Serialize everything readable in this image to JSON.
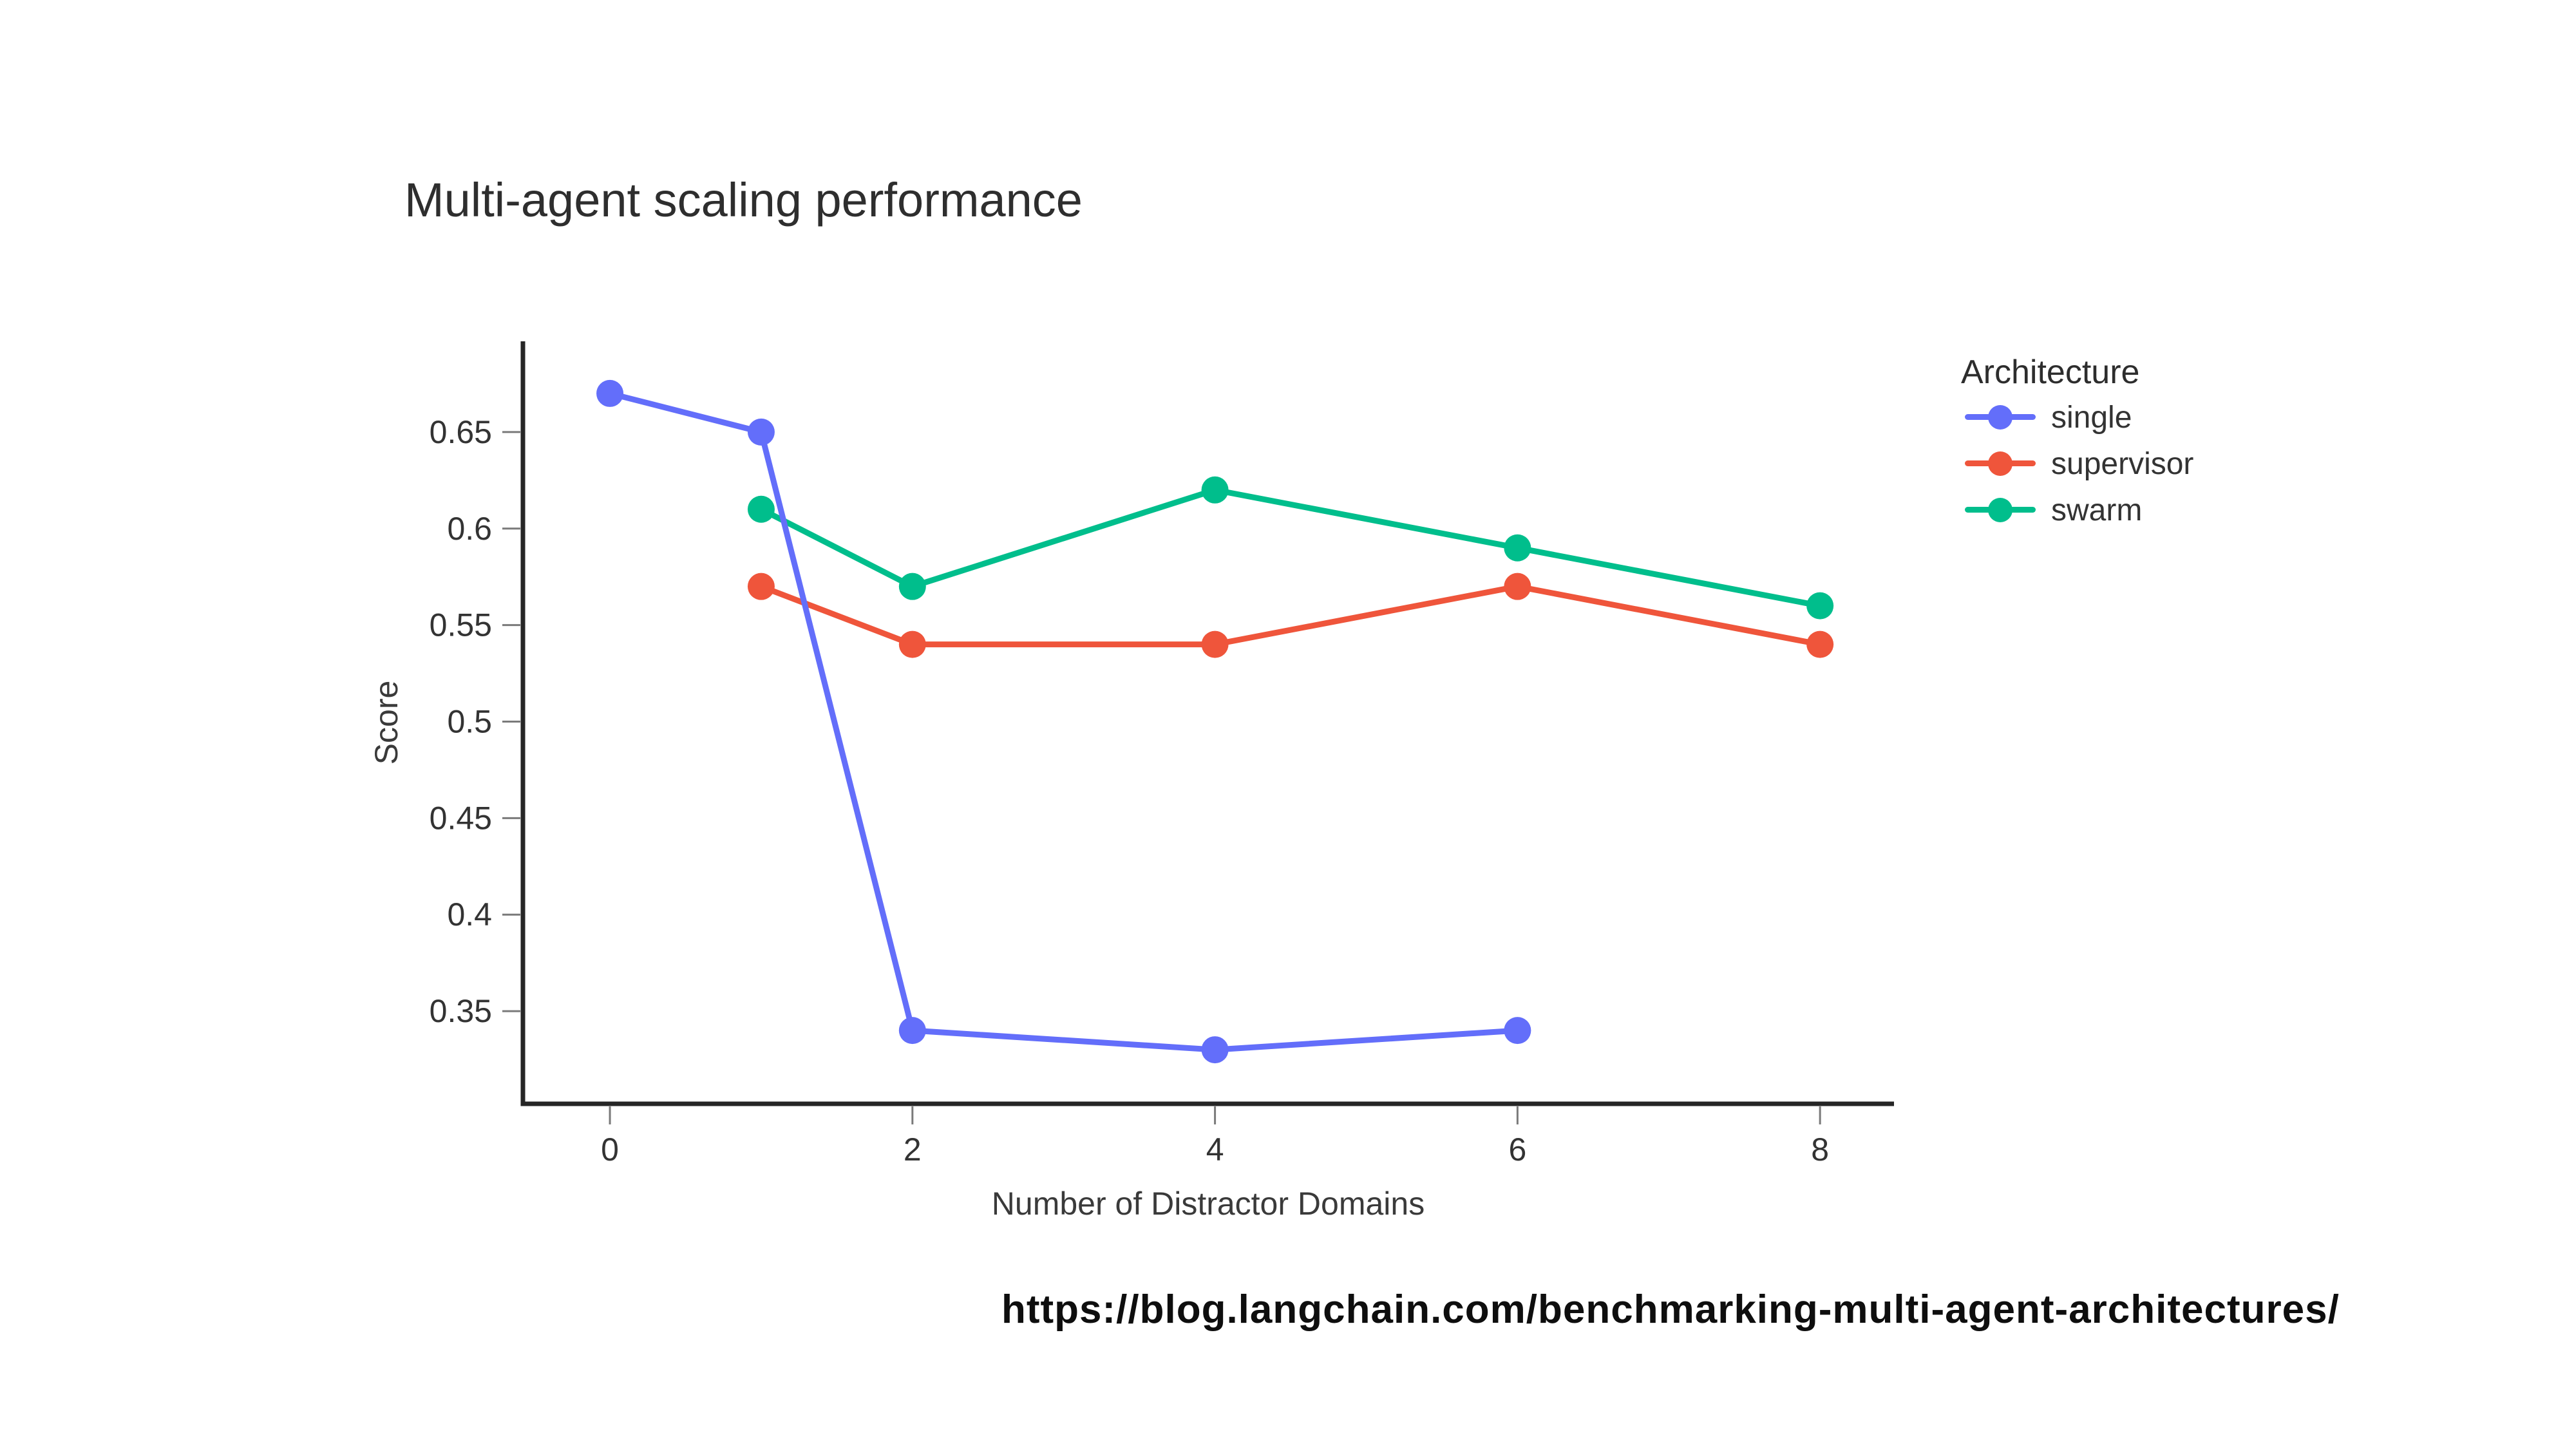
{
  "source": {
    "url": "https://blog.langchain.com/benchmarking-multi-agent-architectures/"
  },
  "chart_data": {
    "type": "line",
    "title": "Multi-agent scaling performance",
    "xlabel": "Number of Distractor Domains",
    "ylabel": "Score",
    "legend_title": "Architecture",
    "legend_position": "right-top",
    "grid": false,
    "background": "#ffffff",
    "x_ticks": [
      0,
      2,
      4,
      6,
      8
    ],
    "y_ticks": [
      0.35,
      0.4,
      0.45,
      0.5,
      0.55,
      0.6,
      0.65
    ],
    "xlim": [
      -0.575,
      8.489
    ],
    "ylim": [
      0.302,
      0.697
    ],
    "axis_color": "#262626",
    "tick_color": "#7a7a7a",
    "tick_label_color": "#333333",
    "series": [
      {
        "name": "single",
        "color": "#636EFA",
        "x": [
          0,
          1,
          2,
          4,
          6
        ],
        "y": [
          0.67,
          0.65,
          0.34,
          0.33,
          0.34
        ]
      },
      {
        "name": "supervisor",
        "color": "#EF553B",
        "x": [
          1,
          2,
          4,
          6,
          8
        ],
        "y": [
          0.57,
          0.54,
          0.54,
          0.57,
          0.54
        ]
      },
      {
        "name": "swarm",
        "color": "#00BE8C",
        "x": [
          1,
          2,
          4,
          6,
          8
        ],
        "y": [
          0.61,
          0.57,
          0.62,
          0.59,
          0.56
        ]
      }
    ],
    "draw_order": [
      1,
      2,
      0
    ]
  }
}
